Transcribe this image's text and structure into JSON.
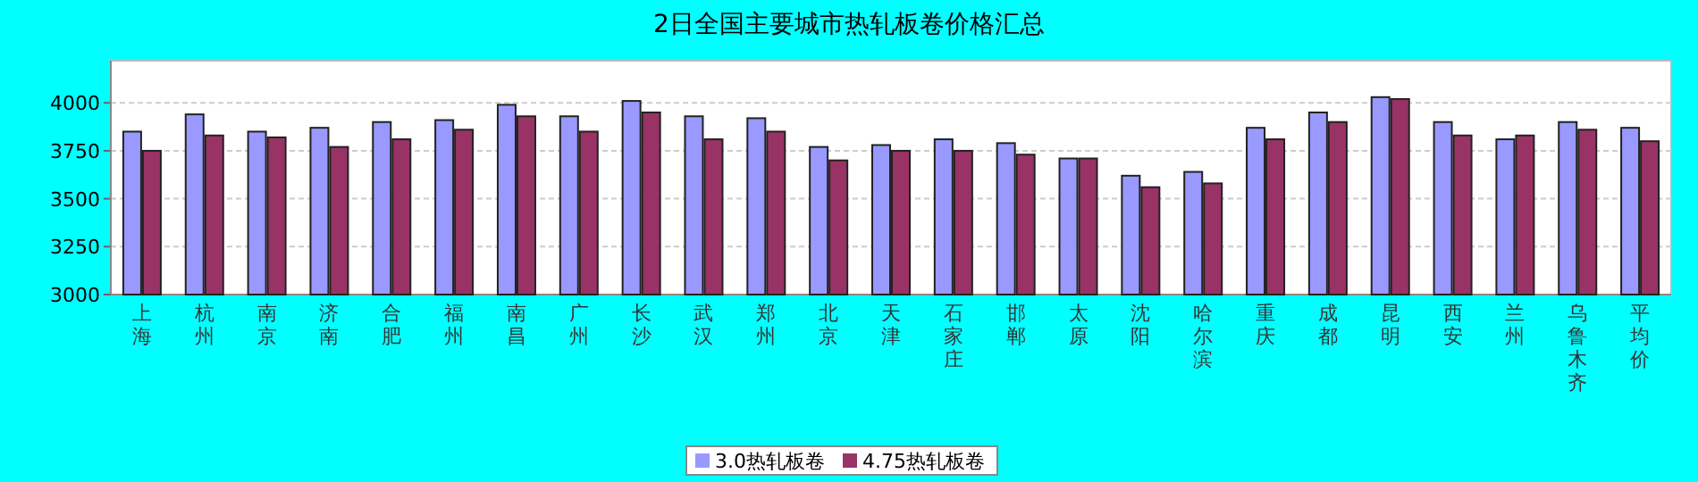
{
  "chart_data": {
    "type": "bar",
    "title": "2日全国主要城市热轧板卷价格汇总",
    "categories": [
      "上海",
      "杭州",
      "南京",
      "济南",
      "合肥",
      "福州",
      "南昌",
      "广州",
      "长沙",
      "武汉",
      "郑州",
      "北京",
      "天津",
      "石家庄",
      "邯郸",
      "太原",
      "沈阳",
      "哈尔滨",
      "重庆",
      "成都",
      "昆明",
      "西安",
      "兰州",
      "乌鲁木齐",
      "平均价"
    ],
    "series": [
      {
        "name": "3.0热轧板卷",
        "color": "#9999ff",
        "values": [
          3850,
          3940,
          3850,
          3870,
          3900,
          3910,
          3990,
          3930,
          4010,
          3930,
          3920,
          3770,
          3780,
          3810,
          3790,
          3710,
          3620,
          3640,
          3870,
          3950,
          4030,
          3900,
          3810,
          3900,
          3870
        ]
      },
      {
        "name": "4.75热轧板卷",
        "color": "#993366",
        "values": [
          3750,
          3830,
          3820,
          3770,
          3810,
          3860,
          3930,
          3850,
          3950,
          3810,
          3850,
          3700,
          3750,
          3750,
          3730,
          3710,
          3560,
          3580,
          3810,
          3900,
          4020,
          3830,
          3830,
          3860,
          3800
        ]
      }
    ],
    "ylim": [
      3000,
      4220
    ],
    "yticks": [
      3000,
      3250,
      3500,
      3750,
      4000
    ],
    "grid": "y",
    "legend": "bottom"
  }
}
